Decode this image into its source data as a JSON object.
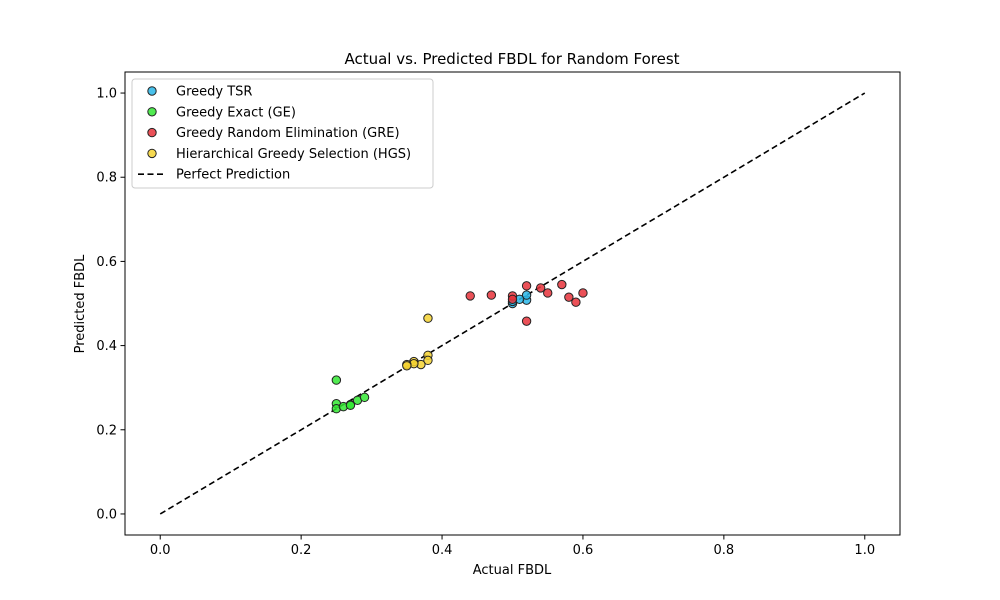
{
  "chart_data": {
    "type": "scatter",
    "title": "Actual vs. Predicted FBDL for Random Forest",
    "xlabel": "Actual FBDL",
    "ylabel": "Predicted FBDL",
    "xlim": [
      -0.05,
      1.05
    ],
    "ylim": [
      -0.05,
      1.05
    ],
    "xticks": [
      "0.0",
      "0.2",
      "0.4",
      "0.6",
      "0.8",
      "1.0"
    ],
    "yticks": [
      "0.0",
      "0.2",
      "0.4",
      "0.6",
      "0.8",
      "1.0"
    ],
    "legend_position": "upper-left",
    "grid": false,
    "series": [
      {
        "name": "Greedy TSR",
        "color": "#29b6e8",
        "points": [
          [
            0.5,
            0.5
          ],
          [
            0.5,
            0.505
          ],
          [
            0.52,
            0.508
          ],
          [
            0.52,
            0.52
          ],
          [
            0.51,
            0.51
          ]
        ]
      },
      {
        "name": "Greedy Exact (GE)",
        "color": "#33e833",
        "points": [
          [
            0.25,
            0.318
          ],
          [
            0.25,
            0.262
          ],
          [
            0.25,
            0.25
          ],
          [
            0.26,
            0.255
          ],
          [
            0.27,
            0.26
          ],
          [
            0.27,
            0.258
          ],
          [
            0.28,
            0.27
          ],
          [
            0.29,
            0.277
          ]
        ]
      },
      {
        "name": "Greedy Random Elimination (GRE)",
        "color": "#e8333b",
        "points": [
          [
            0.44,
            0.518
          ],
          [
            0.47,
            0.52
          ],
          [
            0.5,
            0.518
          ],
          [
            0.5,
            0.51
          ],
          [
            0.52,
            0.542
          ],
          [
            0.52,
            0.458
          ],
          [
            0.54,
            0.537
          ],
          [
            0.55,
            0.525
          ],
          [
            0.57,
            0.545
          ],
          [
            0.58,
            0.515
          ],
          [
            0.59,
            0.503
          ],
          [
            0.6,
            0.525
          ]
        ]
      },
      {
        "name": "Hierarchical Greedy Selection (HGS)",
        "color": "#f5d231",
        "points": [
          [
            0.38,
            0.465
          ],
          [
            0.38,
            0.377
          ],
          [
            0.38,
            0.365
          ],
          [
            0.37,
            0.355
          ],
          [
            0.36,
            0.362
          ],
          [
            0.36,
            0.357
          ],
          [
            0.35,
            0.355
          ],
          [
            0.35,
            0.352
          ]
        ]
      }
    ],
    "reference_line": {
      "name": "Perfect Prediction",
      "color": "#000000",
      "points": [
        [
          0.0,
          0.0
        ],
        [
          1.0,
          1.0
        ]
      ]
    }
  }
}
